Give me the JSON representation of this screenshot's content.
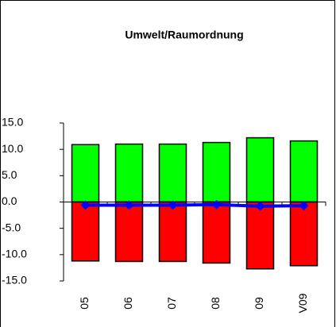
{
  "chart_data": {
    "type": "bar",
    "title": "Umwelt/Raumordnung",
    "categories": [
      "05",
      "06",
      "07",
      "08",
      "09",
      "V09"
    ],
    "series": [
      {
        "color": "#00ff00",
        "values": [
          10.9,
          11.0,
          11.0,
          11.3,
          12.2,
          11.6
        ]
      },
      {
        "color": "#ff0000",
        "values": [
          -11.2,
          -11.3,
          -11.3,
          -11.6,
          -12.7,
          -12.1
        ]
      },
      {
        "type": "line",
        "color": "#0000ff",
        "values": [
          -0.6,
          -0.6,
          -0.6,
          -0.5,
          -0.8,
          -0.7
        ]
      }
    ],
    "ylim": [
      -15,
      15
    ],
    "yticks": [
      {
        "value": -15,
        "label": "-15.0"
      },
      {
        "value": -10,
        "label": "-10.0"
      },
      {
        "value": -5,
        "label": "-5.0"
      },
      {
        "value": 0,
        "label": "0.0"
      },
      {
        "value": 5,
        "label": "5.0"
      },
      {
        "value": 10,
        "label": "10.0"
      },
      {
        "value": 15,
        "label": "15.0"
      }
    ],
    "grid": false
  }
}
